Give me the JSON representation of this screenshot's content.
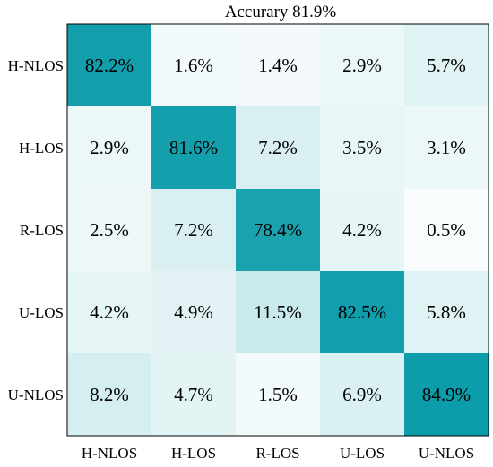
{
  "chart_data": {
    "type": "heatmap",
    "title": "Accurary 81.9%",
    "row_labels": [
      "H-NLOS",
      "H-LOS",
      "R-LOS",
      "U-LOS",
      "U-NLOS"
    ],
    "col_labels": [
      "H-NLOS",
      "H-LOS",
      "R-LOS",
      "U-LOS",
      "U-NLOS"
    ],
    "values": [
      [
        82.2,
        1.6,
        1.4,
        2.9,
        5.7
      ],
      [
        2.9,
        81.6,
        7.2,
        3.5,
        3.1
      ],
      [
        2.5,
        7.2,
        78.4,
        4.2,
        0.5
      ],
      [
        4.2,
        4.9,
        11.5,
        82.5,
        5.8
      ],
      [
        8.2,
        4.7,
        1.5,
        6.9,
        84.9
      ]
    ],
    "value_suffix": "%",
    "colors": {
      "low": "#ffffff",
      "high": "#0d9caa",
      "frame": "#000000"
    }
  }
}
